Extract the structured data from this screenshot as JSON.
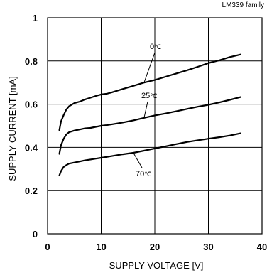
{
  "chart_data": {
    "type": "line",
    "title": "LM339 family",
    "xlabel": "SUPPLY VOLTAGE [V]",
    "ylabel": "SUPPLY CURRENT [mA]",
    "xlim": [
      0,
      40
    ],
    "ylim": [
      0,
      1
    ],
    "x_ticks": [
      "0",
      "10",
      "20",
      "30",
      "40"
    ],
    "y_ticks": [
      "0",
      "0.2",
      "0.4",
      "0.6",
      "0.8",
      "1"
    ],
    "grid": true,
    "series": [
      {
        "name": "0℃",
        "label_text": "0",
        "label_unit": "℃",
        "x": [
          2.2,
          2.5,
          3.0,
          3.5,
          4.0,
          5.0,
          6.0,
          7.0,
          8.0,
          9.0,
          10.0,
          11.0,
          12.0,
          14.0,
          16.0,
          18.0,
          20.0,
          22.0,
          24.0,
          26.0,
          28.0,
          30.0,
          32.0,
          34.0,
          36.0
        ],
        "values": [
          0.48,
          0.52,
          0.55,
          0.575,
          0.59,
          0.605,
          0.612,
          0.622,
          0.63,
          0.638,
          0.645,
          0.648,
          0.655,
          0.67,
          0.685,
          0.7,
          0.712,
          0.727,
          0.742,
          0.757,
          0.773,
          0.79,
          0.803,
          0.818,
          0.83
        ]
      },
      {
        "name": "25℃",
        "label_text": "25",
        "label_unit": "℃",
        "x": [
          2.2,
          2.5,
          3.0,
          3.5,
          4.0,
          5.0,
          6.0,
          7.0,
          8.0,
          9.0,
          10.0,
          11.0,
          12.0,
          14.0,
          16.0,
          18.0,
          20.0,
          22.0,
          24.0,
          26.0,
          28.0,
          30.0,
          32.0,
          34.0,
          36.0
        ],
        "values": [
          0.37,
          0.41,
          0.44,
          0.46,
          0.47,
          0.478,
          0.483,
          0.488,
          0.49,
          0.495,
          0.5,
          0.503,
          0.507,
          0.515,
          0.525,
          0.537,
          0.548,
          0.557,
          0.567,
          0.578,
          0.588,
          0.597,
          0.608,
          0.62,
          0.633
        ]
      },
      {
        "name": "70℃",
        "label_text": "70",
        "label_unit": "℃",
        "x": [
          2.2,
          2.5,
          3.0,
          3.5,
          4.0,
          5.0,
          6.0,
          7.0,
          8.0,
          9.0,
          10.0,
          11.0,
          12.0,
          14.0,
          16.0,
          18.0,
          20.0,
          22.0,
          24.0,
          26.0,
          28.0,
          30.0,
          32.0,
          34.0,
          36.0
        ],
        "values": [
          0.27,
          0.29,
          0.31,
          0.318,
          0.325,
          0.33,
          0.335,
          0.34,
          0.344,
          0.348,
          0.352,
          0.356,
          0.36,
          0.368,
          0.375,
          0.385,
          0.395,
          0.405,
          0.415,
          0.425,
          0.433,
          0.44,
          0.447,
          0.455,
          0.465
        ]
      }
    ]
  }
}
